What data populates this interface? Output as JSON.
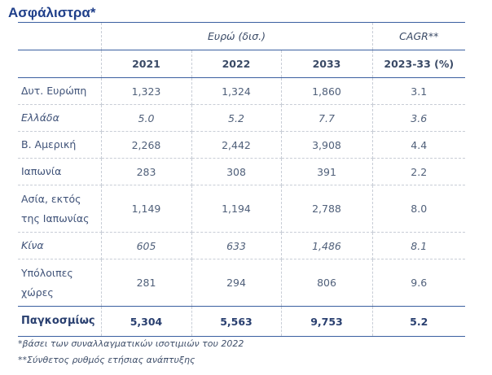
{
  "title": "Ασφάλιστρα*",
  "header": {
    "group_label": "Ευρώ (δισ.)",
    "cagr_label": "CAGR**",
    "years": [
      "2021",
      "2022",
      "2033"
    ],
    "cagr_period": "2023-33 (%)"
  },
  "rows": [
    {
      "label": "Δυτ. Ευρώπη",
      "v2021": "1,323",
      "v2022": "1,324",
      "v2033": "1,860",
      "cagr": "3.1"
    },
    {
      "label": "Ελλάδα",
      "v2021": "5.0",
      "v2022": "5.2",
      "v2033": "7.7",
      "cagr": "3.6"
    },
    {
      "label": "Β. Αμερική",
      "v2021": "2,268",
      "v2022": "2,442",
      "v2033": "3,908",
      "cagr": "4.4"
    },
    {
      "label": "Ιαπωνία",
      "v2021": "283",
      "v2022": "308",
      "v2033": "391",
      "cagr": "2.2"
    },
    {
      "label": "Ασία, εκτός της Ιαπωνίας",
      "v2021": "1,149",
      "v2022": "1,194",
      "v2033": "2,788",
      "cagr": "8.0"
    },
    {
      "label": "Κίνα",
      "v2021": "605",
      "v2022": "633",
      "v2033": "1,486",
      "cagr": "8.1"
    },
    {
      "label": "Υπόλοιπες χώρες",
      "v2021": "281",
      "v2022": "294",
      "v2033": "806",
      "cagr": "9.6"
    }
  ],
  "total": {
    "label": "Παγκοσμίως",
    "v2021": "5,304",
    "v2022": "5,563",
    "v2033": "9,753",
    "cagr": "5.2"
  },
  "footnotes": [
    "*βάσει των συναλλαγματικών ισοτιμιών του 2022",
    "**Σύνθετος ρυθμός ετήσιας ανάπτυξης"
  ]
}
